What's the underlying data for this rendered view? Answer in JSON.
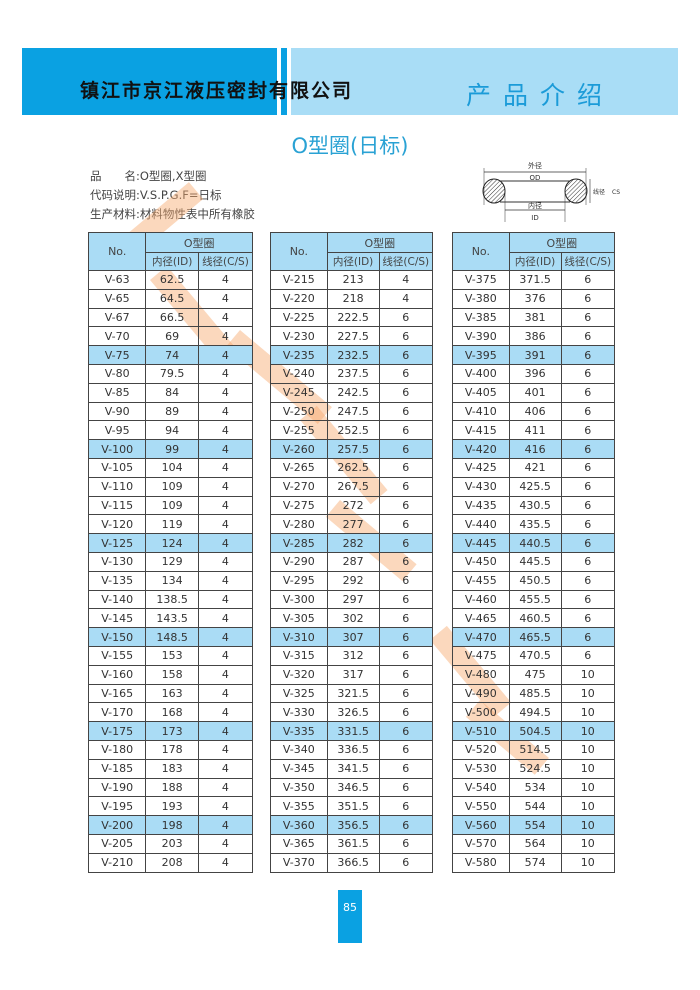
{
  "header": {
    "company": "镇江市京江液压密封有限公司",
    "section": "产品介绍"
  },
  "title": "O型圈(日标)",
  "info": [
    "品　　名:O型圈,X型圈",
    "代码说明:V.S.P.G.F=日标",
    "生产材料:材料物性表中所有橡胶"
  ],
  "diagram": {
    "od_cn": "外径",
    "od": "OD",
    "id_cn": "内径",
    "id": "ID",
    "cs_cn": "线径",
    "cs": "CS"
  },
  "table_headers": {
    "no": "No.",
    "group": "O型圈",
    "id": "内径(ID)",
    "cs": "线径(C/S)"
  },
  "colors": {
    "header_dark": "#0aa1e2",
    "header_light": "#a9ddf6",
    "row_highlight": "#aadcf5",
    "watermark": "#f6a86c"
  },
  "tables": [
    {
      "rows": [
        [
          "V-63",
          "62.5",
          "4"
        ],
        [
          "V-65",
          "64.5",
          "4"
        ],
        [
          "V-67",
          "66.5",
          "4"
        ],
        [
          "V-70",
          "69",
          "4"
        ],
        [
          "V-75",
          "74",
          "4"
        ],
        [
          "V-80",
          "79.5",
          "4"
        ],
        [
          "V-85",
          "84",
          "4"
        ],
        [
          "V-90",
          "89",
          "4"
        ],
        [
          "V-95",
          "94",
          "4"
        ],
        [
          "V-100",
          "99",
          "4"
        ],
        [
          "V-105",
          "104",
          "4"
        ],
        [
          "V-110",
          "109",
          "4"
        ],
        [
          "V-115",
          "109",
          "4"
        ],
        [
          "V-120",
          "119",
          "4"
        ],
        [
          "V-125",
          "124",
          "4"
        ],
        [
          "V-130",
          "129",
          "4"
        ],
        [
          "V-135",
          "134",
          "4"
        ],
        [
          "V-140",
          "138.5",
          "4"
        ],
        [
          "V-145",
          "143.5",
          "4"
        ],
        [
          "V-150",
          "148.5",
          "4"
        ],
        [
          "V-155",
          "153",
          "4"
        ],
        [
          "V-160",
          "158",
          "4"
        ],
        [
          "V-165",
          "163",
          "4"
        ],
        [
          "V-170",
          "168",
          "4"
        ],
        [
          "V-175",
          "173",
          "4"
        ],
        [
          "V-180",
          "178",
          "4"
        ],
        [
          "V-185",
          "183",
          "4"
        ],
        [
          "V-190",
          "188",
          "4"
        ],
        [
          "V-195",
          "193",
          "4"
        ],
        [
          "V-200",
          "198",
          "4"
        ],
        [
          "V-205",
          "203",
          "4"
        ],
        [
          "V-210",
          "208",
          "4"
        ]
      ]
    },
    {
      "rows": [
        [
          "V-215",
          "213",
          "4"
        ],
        [
          "V-220",
          "218",
          "4"
        ],
        [
          "V-225",
          "222.5",
          "6"
        ],
        [
          "V-230",
          "227.5",
          "6"
        ],
        [
          "V-235",
          "232.5",
          "6"
        ],
        [
          "V-240",
          "237.5",
          "6"
        ],
        [
          "V-245",
          "242.5",
          "6"
        ],
        [
          "V-250",
          "247.5",
          "6"
        ],
        [
          "V-255",
          "252.5",
          "6"
        ],
        [
          "V-260",
          "257.5",
          "6"
        ],
        [
          "V-265",
          "262.5",
          "6"
        ],
        [
          "V-270",
          "267.5",
          "6"
        ],
        [
          "V-275",
          "272",
          "6"
        ],
        [
          "V-280",
          "277",
          "6"
        ],
        [
          "V-285",
          "282",
          "6"
        ],
        [
          "V-290",
          "287",
          "6"
        ],
        [
          "V-295",
          "292",
          "6"
        ],
        [
          "V-300",
          "297",
          "6"
        ],
        [
          "V-305",
          "302",
          "6"
        ],
        [
          "V-310",
          "307",
          "6"
        ],
        [
          "V-315",
          "312",
          "6"
        ],
        [
          "V-320",
          "317",
          "6"
        ],
        [
          "V-325",
          "321.5",
          "6"
        ],
        [
          "V-330",
          "326.5",
          "6"
        ],
        [
          "V-335",
          "331.5",
          "6"
        ],
        [
          "V-340",
          "336.5",
          "6"
        ],
        [
          "V-345",
          "341.5",
          "6"
        ],
        [
          "V-350",
          "346.5",
          "6"
        ],
        [
          "V-355",
          "351.5",
          "6"
        ],
        [
          "V-360",
          "356.5",
          "6"
        ],
        [
          "V-365",
          "361.5",
          "6"
        ],
        [
          "V-370",
          "366.5",
          "6"
        ]
      ]
    },
    {
      "rows": [
        [
          "V-375",
          "371.5",
          "6"
        ],
        [
          "V-380",
          "376",
          "6"
        ],
        [
          "V-385",
          "381",
          "6"
        ],
        [
          "V-390",
          "386",
          "6"
        ],
        [
          "V-395",
          "391",
          "6"
        ],
        [
          "V-400",
          "396",
          "6"
        ],
        [
          "V-405",
          "401",
          "6"
        ],
        [
          "V-410",
          "406",
          "6"
        ],
        [
          "V-415",
          "411",
          "6"
        ],
        [
          "V-420",
          "416",
          "6"
        ],
        [
          "V-425",
          "421",
          "6"
        ],
        [
          "V-430",
          "425.5",
          "6"
        ],
        [
          "V-435",
          "430.5",
          "6"
        ],
        [
          "V-440",
          "435.5",
          "6"
        ],
        [
          "V-445",
          "440.5",
          "6"
        ],
        [
          "V-450",
          "445.5",
          "6"
        ],
        [
          "V-455",
          "450.5",
          "6"
        ],
        [
          "V-460",
          "455.5",
          "6"
        ],
        [
          "V-465",
          "460.5",
          "6"
        ],
        [
          "V-470",
          "465.5",
          "6"
        ],
        [
          "V-475",
          "470.5",
          "6"
        ],
        [
          "V-480",
          "475",
          "10"
        ],
        [
          "V-490",
          "485.5",
          "10"
        ],
        [
          "V-500",
          "494.5",
          "10"
        ],
        [
          "V-510",
          "504.5",
          "10"
        ],
        [
          "V-520",
          "514.5",
          "10"
        ],
        [
          "V-530",
          "524.5",
          "10"
        ],
        [
          "V-540",
          "534",
          "10"
        ],
        [
          "V-550",
          "544",
          "10"
        ],
        [
          "V-560",
          "554",
          "10"
        ],
        [
          "V-570",
          "564",
          "10"
        ],
        [
          "V-580",
          "574",
          "10"
        ]
      ]
    }
  ],
  "page_number": "85"
}
